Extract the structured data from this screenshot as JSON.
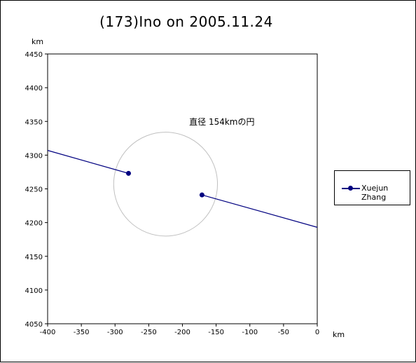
{
  "chart_data": {
    "type": "line",
    "title": "(173)Ino on 2005.11.24",
    "xlabel": "km",
    "ylabel": "km",
    "xlim": [
      -400,
      0
    ],
    "ylim": [
      4050,
      4450
    ],
    "x_ticks": [
      -400,
      -350,
      -300,
      -250,
      -200,
      -150,
      -100,
      -50,
      0
    ],
    "y_ticks": [
      4050,
      4100,
      4150,
      4200,
      4250,
      4300,
      4350,
      4400,
      4450
    ],
    "x_tick_labels": [
      "-400",
      "-350",
      "-300",
      "-250",
      "-200",
      "-150",
      "-100",
      "-50",
      "0"
    ],
    "y_tick_labels": [
      "4050",
      "4100",
      "4150",
      "4200",
      "4250",
      "4300",
      "4350",
      "4400",
      "4450"
    ],
    "grid": false,
    "legend_position": "right",
    "series": [
      {
        "name": "Xuejun Zhang",
        "color": "#000080",
        "segments": [
          {
            "x": [
              -400,
              -280
            ],
            "y": [
              4307,
              4273
            ]
          },
          {
            "x": [
              -171,
              0
            ],
            "y": [
              4241,
              4193
            ]
          }
        ],
        "points": [
          {
            "x": -280,
            "y": 4273
          },
          {
            "x": -171,
            "y": 4241
          }
        ]
      }
    ],
    "circle": {
      "label": "直径 154kmの円",
      "center_x": -225,
      "center_y": 4257,
      "diameter_km": 154,
      "color": "#c0c0c0"
    }
  }
}
